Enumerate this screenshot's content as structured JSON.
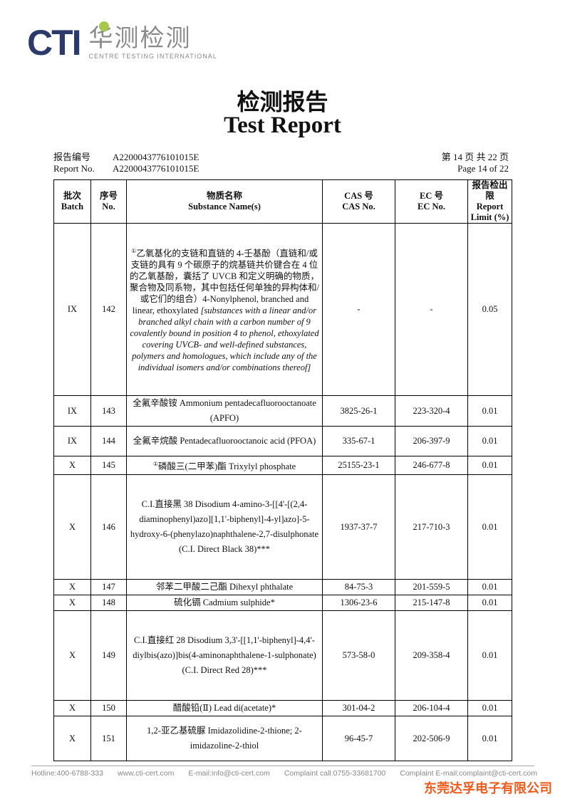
{
  "logo": {
    "brand": "CTI",
    "cn": "华测检测",
    "en": "CENTRE TESTING INTERNATIONAL"
  },
  "title": {
    "cn": "检测报告",
    "en": "Test Report"
  },
  "meta": {
    "report_no_cn": "报告编号",
    "report_no_en": "Report No.",
    "report_no": "A2200043776101015E",
    "page_cn": "第 14 页 共 22 页",
    "page_en": "Page 14 of 22"
  },
  "table": {
    "headers": [
      {
        "cn": "批次",
        "en": "Batch"
      },
      {
        "cn": "序号",
        "en": "No."
      },
      {
        "cn": "物质名称",
        "en": "Substance Name(s)"
      },
      {
        "cn": "CAS 号",
        "en": "CAS No."
      },
      {
        "cn": "EC 号",
        "en": "EC No."
      },
      {
        "cn": "报告检出限",
        "en": "Report Limit (%)"
      }
    ],
    "rows": [
      {
        "batch": "IX",
        "no": "142",
        "name": "乙氧基化的支链和直链的 4-壬基酚（直链和/或支链的具有 9 个碳原子的烷基链共价键合在 4 位的乙氧基酚，囊括了 UVCB 和定义明确的物质，聚合物及同系物，其中包括任何单独的异构体和/或它们的组合）4-Nonylphenol, branched and linear, ethoxylated",
        "name_italic": "[substances with a linear and/or branched alkyl chain with a carbon number of 9 covalently bound in position 4 to phenol, ethoxylated covering UVCB- and well-defined substances, polymers and homologues, which include any of the individual isomers and/or combinations thereof]",
        "mark": "①",
        "cas": "-",
        "ec": "-",
        "limit": "0.05"
      },
      {
        "batch": "IX",
        "no": "143",
        "name": "全氟辛酸铵 Ammonium pentadecafluorooctanoate (APFO)",
        "cas": "3825-26-1",
        "ec": "223-320-4",
        "limit": "0.01"
      },
      {
        "batch": "IX",
        "no": "144",
        "name": "全氟辛烷酸 Pentadecafluorooctanoic acid (PFOA)",
        "cas": "335-67-1",
        "ec": "206-397-9",
        "limit": "0.01"
      },
      {
        "batch": "X",
        "no": "145",
        "mark": "①",
        "name": "磷酸三(二甲苯)酯 Trixylyl phosphate",
        "cas": "25155-23-1",
        "ec": "246-677-8",
        "limit": "0.01"
      },
      {
        "batch": "X",
        "no": "146",
        "name": "C.I.直接黑 38 Disodium 4-amino-3-[[4'-[(2,4-diaminophenyl)azo][1,1'-biphenyl]-4-yl]azo]-5-hydroxy-6-(phenylazo)naphthalene-2,7-disulphonate (C.I. Direct Black 38)***",
        "cas": "1937-37-7",
        "ec": "217-710-3",
        "limit": "0.01"
      },
      {
        "batch": "X",
        "no": "147",
        "name": "邻苯二甲酸二己酯 Dihexyl phthalate",
        "cas": "84-75-3",
        "ec": "201-559-5",
        "limit": "0.01"
      },
      {
        "batch": "X",
        "no": "148",
        "name": "硫化镉 Cadmium sulphide*",
        "cas": "1306-23-6",
        "ec": "215-147-8",
        "limit": "0.01"
      },
      {
        "batch": "X",
        "no": "149",
        "name": "C.I.直接红 28 Disodium 3,3'-[[1,1'-biphenyl]-4,4'-diylbis(azo)]bis(4-aminonaphthalene-1-sulphonate) (C.I. Direct Red 28)***",
        "cas": "573-58-0",
        "ec": "209-358-4",
        "limit": "0.01"
      },
      {
        "batch": "X",
        "no": "150",
        "name": "醋酸铅(Ⅱ) Lead di(acetate)*",
        "cas": "301-04-2",
        "ec": "206-104-4",
        "limit": "0.01"
      },
      {
        "batch": "X",
        "no": "151",
        "name": "1,2-亚乙基硫脲 Imidazolidine-2-thione; 2-imidazoline-2-thiol",
        "cas": "96-45-7",
        "ec": "202-506-9",
        "limit": "0.01"
      }
    ]
  },
  "footer": {
    "hotline": "Hotline:400-6788-333",
    "web": "www.cti-cert.com",
    "email": "E-mail:info@cti-cert.com",
    "complaint_call": "Complaint call:0755-33681700",
    "complaint_email": "Complaint E-mail:complaint@cti-cert.com"
  },
  "company": "东莞达孚电子有限公司"
}
